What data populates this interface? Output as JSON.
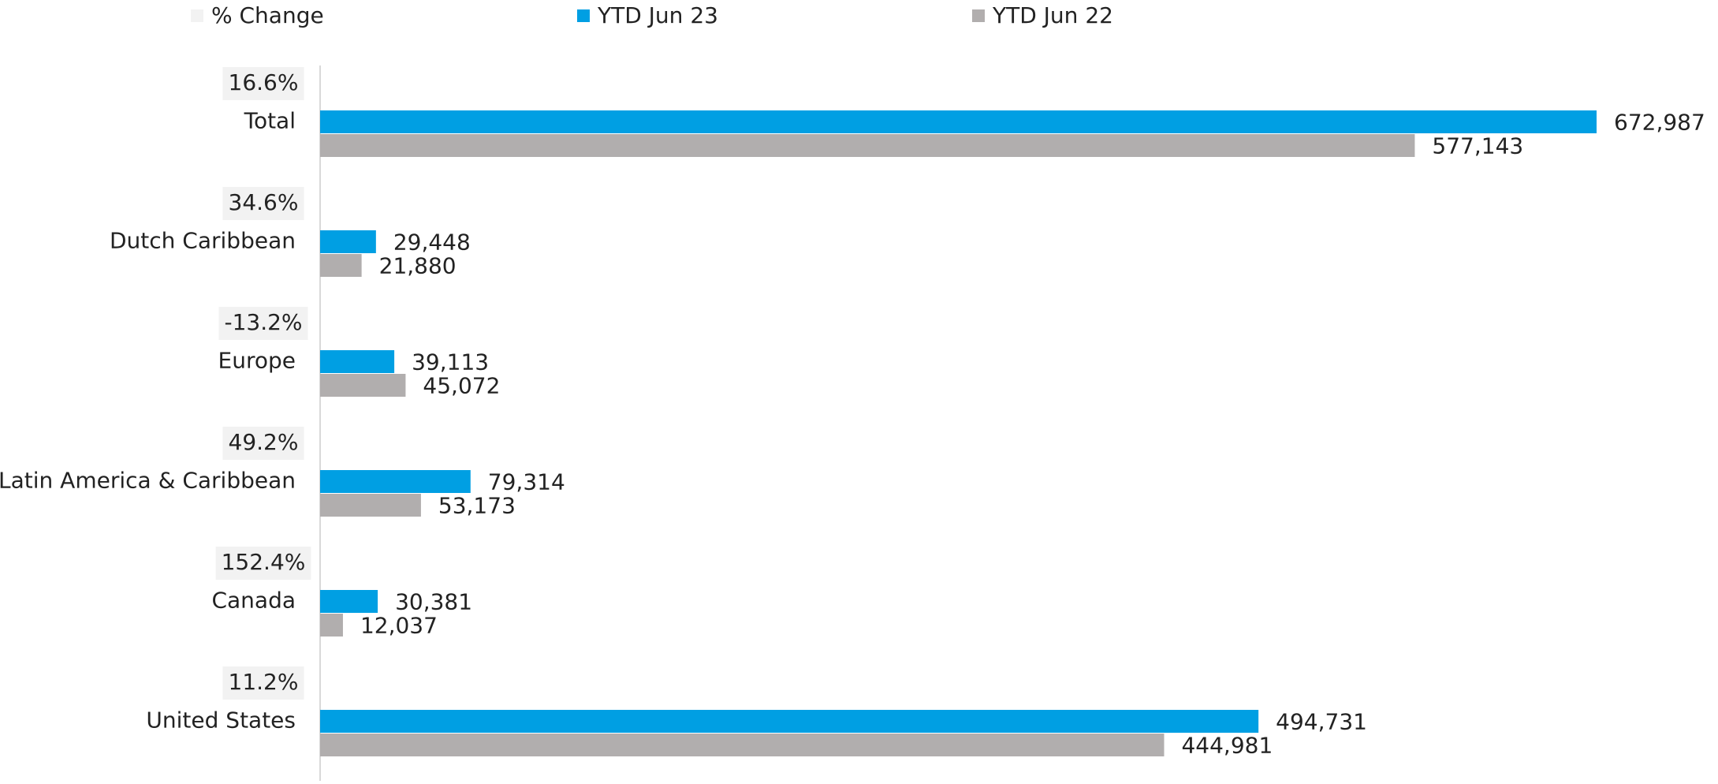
{
  "chart_data": {
    "type": "bar",
    "orientation": "horizontal",
    "categories": [
      "Total",
      "Dutch Caribbean",
      "Europe",
      "Latin America & Caribbean",
      "Canada",
      "United States"
    ],
    "series": [
      {
        "name": "% Change",
        "color": "#f2f2f2",
        "values": [
          16.6,
          34.6,
          -13.2,
          49.2,
          152.4,
          11.2
        ],
        "value_labels": [
          "16.6%",
          "34.6%",
          "-13.2%",
          "49.2%",
          "152.4%",
          "11.2%"
        ]
      },
      {
        "name": "YTD Jun 23",
        "color": "#009fe3",
        "values": [
          672987,
          29448,
          39113,
          79314,
          30381,
          494731
        ],
        "value_labels": [
          "672,987",
          "29,448",
          "39,113",
          "79,314",
          "30,381",
          "494,731"
        ]
      },
      {
        "name": "YTD Jun 22",
        "color": "#b1aeae",
        "values": [
          577143,
          21880,
          45072,
          53173,
          12037,
          444981
        ],
        "value_labels": [
          "577,143",
          "21,880",
          "45,072",
          "53,173",
          "12,037",
          "444,981"
        ]
      }
    ],
    "legend": "top"
  }
}
